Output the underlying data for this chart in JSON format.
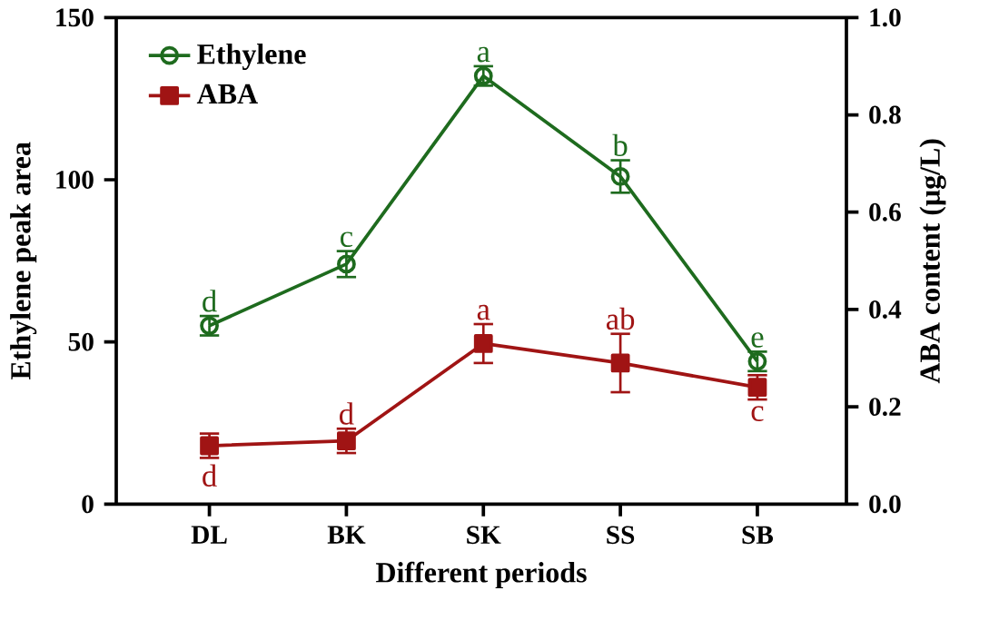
{
  "chart_data": {
    "type": "line",
    "xlabel": "Different periods",
    "ylabel": "Ethylene peak area",
    "y2label": "ABA content (μg/L)",
    "categories": [
      "DL",
      "BK",
      "SK",
      "SS",
      "SB"
    ],
    "series": [
      {
        "name": "Ethylene",
        "color": "#1e6b1e",
        "marker": "circle",
        "values": [
          55,
          74,
          132,
          101,
          44
        ],
        "errors": [
          3,
          4,
          3,
          5,
          3
        ],
        "value_labels": [
          "d",
          "c",
          "a",
          "b",
          "e"
        ]
      },
      {
        "name": "ABA",
        "color": "#a01414",
        "marker": "square",
        "axis": "y2",
        "values": [
          0.12,
          0.13,
          0.33,
          0.29,
          0.24
        ],
        "errors": [
          0.025,
          0.025,
          0.04,
          0.06,
          0.025
        ],
        "value_labels": [
          "d",
          "d",
          "a",
          "ab",
          "c"
        ]
      }
    ],
    "ylim": [
      0,
      150
    ],
    "yticks": [
      0,
      50,
      100,
      150
    ],
    "y2lim": [
      0,
      1.0
    ],
    "y2ticks": [
      {
        "value": 0,
        "label": "0.0"
      },
      {
        "value": 0.2,
        "label": "0.2"
      },
      {
        "value": 0.4,
        "label": "0.4"
      },
      {
        "value": 0.6,
        "label": "0.6"
      },
      {
        "value": 0.8,
        "label": "0.8"
      },
      {
        "value": 1.0,
        "label": "1.0"
      }
    ],
    "legend": "top left",
    "grid": false
  }
}
